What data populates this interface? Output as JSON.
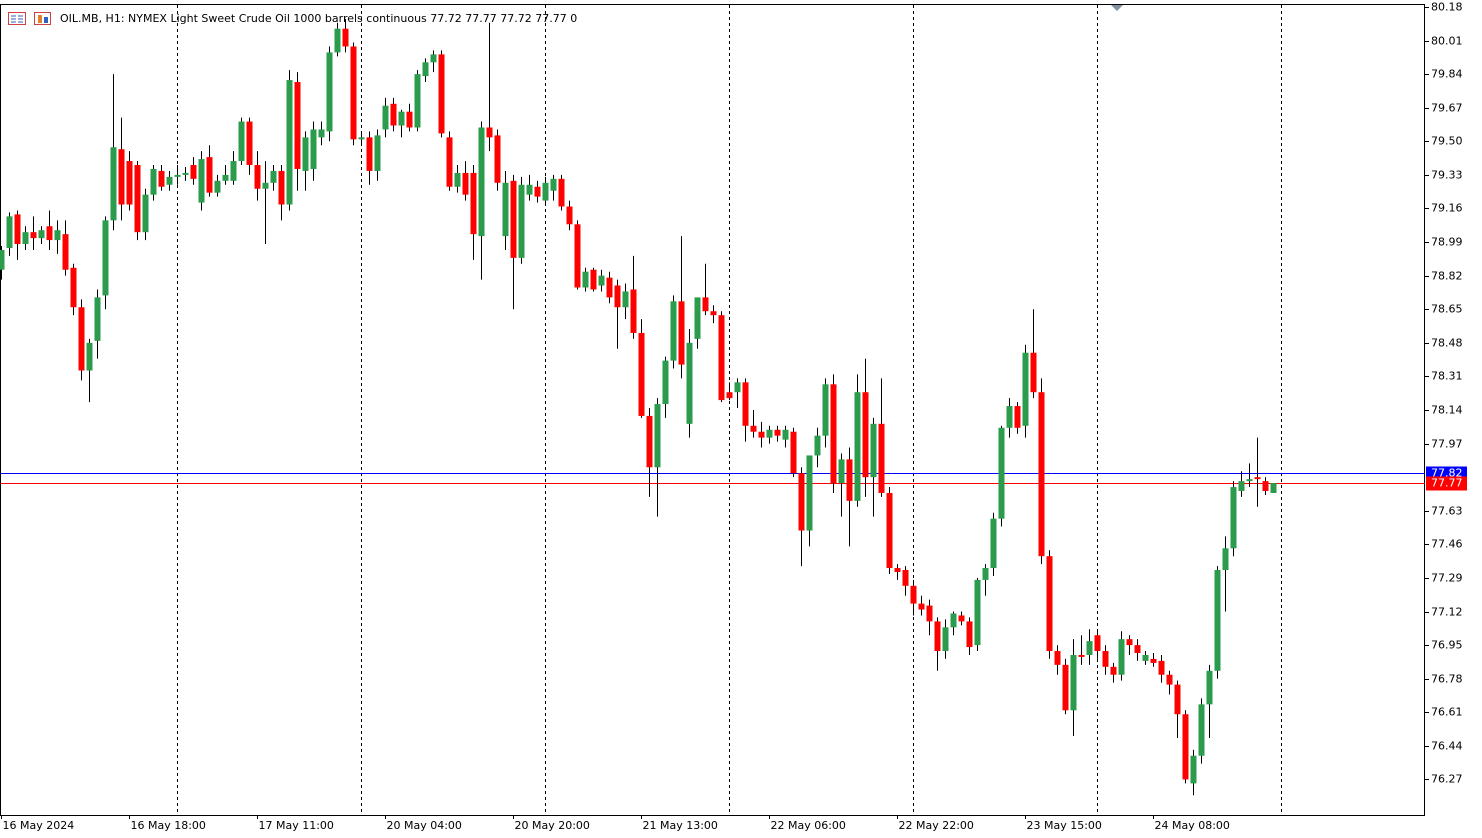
{
  "chart_data": {
    "type": "candlestick",
    "title": "OIL.MB, H1:  NYMEX Light Sweet Crude Oil 1000 barrels continuous  77.72 77.77 77.72 77.77  0",
    "up_color": "#2b9b4c",
    "down_color": "#ff0000",
    "wick_color": "#000000",
    "open": [
      78.85,
      78.96,
      79.13,
      78.98,
      79.04,
      79.01,
      79.07,
      79.0,
      79.03,
      78.86,
      78.66,
      78.34,
      78.49,
      78.72,
      79.1,
      79.46,
      79.4,
      79.38,
      79.04,
      79.23,
      79.35,
      79.28,
      79.32,
      79.33,
      79.38,
      79.19,
      79.42,
      79.24,
      79.3,
      79.3,
      79.4,
      79.6,
      79.38,
      79.26,
      79.29,
      79.35,
      79.18,
      79.8,
      79.35,
      79.36,
      79.52,
      79.55,
      79.95,
      80.07,
      79.98,
      79.51,
      79.52,
      79.35,
      79.56,
      79.69,
      79.58,
      79.65,
      79.57,
      79.83,
      79.9,
      79.94,
      79.52,
      79.27,
      79.34,
      79.34,
      79.02,
      79.57,
      79.53,
      79.02,
      79.3,
      78.91,
      79.23,
      79.27,
      79.2,
      79.25,
      79.31,
      79.17,
      79.08,
      78.76,
      78.85,
      78.77,
      78.81,
      78.77,
      78.66,
      78.75,
      78.53,
      78.11,
      77.85,
      78.17,
      78.39,
      78.69,
      78.07,
      78.5,
      78.71,
      78.64,
      78.62,
      78.23,
      78.23,
      78.28,
      78.06,
      78.03,
      78.0,
      78.04,
      77.99,
      78.03,
      77.82,
      77.53,
      77.91,
      78.01,
      78.27,
      77.77,
      77.89,
      77.68,
      78.23,
      77.8,
      78.07,
      77.72,
      77.34,
      77.33,
      77.25,
      77.16,
      77.15,
      77.07,
      76.92,
      77.04,
      77.1,
      77.07,
      76.95,
      77.28,
      77.34,
      77.59,
      78.05,
      78.16,
      78.06,
      78.43,
      78.23,
      77.4,
      76.92,
      76.85,
      76.62,
      76.9,
      76.9,
      77.0,
      76.92,
      76.84,
      76.8,
      76.98,
      76.95,
      76.87,
      76.88,
      76.87,
      76.8,
      76.75,
      76.6,
      76.25,
      76.39,
      76.65,
      76.82,
      77.33,
      77.44,
      77.73,
      77.78,
      77.8,
      77.78,
      77.72
    ],
    "high": [
      78.97,
      79.14,
      79.15,
      79.07,
      79.12,
      79.07,
      79.15,
      79.1,
      79.1,
      78.88,
      78.7,
      78.5,
      78.75,
      79.12,
      79.84,
      79.62,
      79.45,
      79.4,
      79.26,
      79.38,
      79.38,
      79.35,
      79.38,
      79.37,
      79.42,
      79.45,
      79.48,
      79.33,
      79.38,
      79.45,
      79.62,
      79.62,
      79.45,
      79.4,
      79.38,
      79.38,
      79.86,
      79.85,
      79.55,
      79.6,
      79.6,
      79.98,
      80.1,
      80.12,
      80.0,
      79.54,
      79.55,
      79.56,
      79.72,
      79.72,
      79.66,
      79.69,
      79.86,
      79.92,
      79.96,
      79.96,
      79.55,
      79.38,
      79.4,
      79.38,
      79.6,
      80.1,
      79.56,
      79.35,
      79.33,
      79.32,
      79.33,
      79.3,
      79.32,
      79.33,
      79.33,
      79.2,
      79.1,
      78.86,
      78.86,
      78.85,
      78.84,
      78.8,
      78.78,
      78.92,
      78.6,
      78.15,
      78.2,
      78.41,
      78.72,
      79.02,
      78.55,
      78.7,
      78.88,
      78.67,
      78.64,
      78.28,
      78.3,
      78.3,
      78.14,
      78.08,
      78.06,
      78.06,
      78.06,
      78.05,
      77.85,
      77.9,
      78.05,
      78.3,
      78.32,
      77.92,
      77.95,
      78.32,
      78.4,
      78.1,
      78.3,
      77.75,
      77.36,
      77.35,
      77.28,
      77.2,
      77.18,
      77.09,
      77.08,
      77.12,
      77.12,
      77.09,
      77.29,
      77.36,
      77.62,
      78.06,
      78.2,
      78.18,
      78.47,
      78.65,
      78.3,
      77.43,
      76.95,
      76.88,
      76.98,
      77.0,
      77.03,
      77.02,
      76.95,
      76.86,
      77.02,
      77.0,
      76.98,
      76.92,
      76.91,
      76.9,
      76.82,
      76.77,
      76.62,
      76.42,
      76.68,
      76.85,
      77.35,
      77.5,
      77.78,
      77.83,
      77.87,
      78.0,
      77.8,
      77.77
    ],
    "low": [
      78.8,
      78.92,
      78.9,
      78.95,
      78.95,
      78.98,
      78.95,
      78.93,
      78.82,
      78.62,
      78.29,
      78.18,
      78.4,
      78.65,
      79.05,
      79.1,
      79.15,
      79.0,
      79.0,
      79.2,
      79.25,
      79.25,
      79.28,
      79.3,
      79.28,
      79.15,
      79.22,
      79.22,
      79.28,
      79.28,
      79.38,
      79.33,
      79.2,
      78.98,
      79.25,
      79.1,
      79.15,
      79.25,
      79.25,
      79.3,
      79.48,
      79.5,
      79.93,
      79.95,
      79.48,
      79.49,
      79.28,
      79.3,
      79.52,
      79.55,
      79.52,
      79.55,
      79.55,
      79.8,
      79.85,
      79.52,
      79.25,
      79.24,
      79.2,
      78.9,
      78.8,
      79.45,
      79.25,
      78.95,
      78.65,
      78.88,
      79.2,
      79.19,
      79.18,
      79.2,
      79.15,
      79.05,
      78.75,
      78.74,
      78.74,
      78.74,
      78.68,
      78.45,
      78.6,
      78.5,
      78.1,
      77.7,
      77.6,
      78.1,
      78.35,
      78.3,
      78.0,
      78.45,
      78.62,
      78.58,
      78.18,
      78.19,
      78.15,
      77.98,
      78.0,
      77.95,
      77.97,
      77.98,
      77.95,
      77.8,
      77.35,
      77.45,
      77.85,
      77.95,
      77.72,
      77.6,
      77.45,
      77.65,
      77.7,
      77.6,
      77.7,
      77.31,
      77.28,
      77.2,
      77.1,
      77.1,
      77.0,
      76.82,
      76.88,
      77.0,
      77.05,
      76.9,
      76.92,
      77.2,
      77.3,
      77.55,
      78.0,
      78.02,
      78.0,
      78.2,
      77.36,
      76.88,
      76.8,
      76.6,
      76.49,
      76.85,
      76.85,
      76.88,
      76.8,
      76.76,
      76.77,
      76.9,
      76.87,
      76.85,
      76.84,
      76.76,
      76.7,
      76.48,
      76.25,
      76.19,
      76.35,
      76.48,
      76.78,
      77.12,
      77.4,
      77.7,
      77.75,
      77.65,
      77.71,
      77.72
    ],
    "close": [
      78.95,
      79.12,
      78.98,
      79.04,
      79.01,
      79.05,
      79.0,
      79.05,
      78.85,
      78.66,
      78.34,
      78.48,
      78.71,
      79.1,
      79.47,
      79.18,
      79.18,
      79.04,
      79.23,
      79.36,
      79.27,
      79.32,
      79.33,
      79.34,
      79.31,
      79.41,
      79.24,
      79.3,
      79.33,
      79.4,
      79.6,
      79.38,
      79.26,
      79.29,
      79.35,
      79.18,
      79.81,
      79.36,
      79.52,
      79.56,
      79.56,
      79.95,
      80.07,
      79.98,
      79.51,
      79.52,
      79.35,
      79.53,
      79.68,
      79.58,
      79.65,
      79.57,
      79.84,
      79.9,
      79.94,
      79.54,
      79.27,
      79.34,
      79.23,
      79.03,
      79.57,
      79.52,
      79.29,
      79.29,
      78.91,
      79.28,
      79.28,
      79.22,
      79.29,
      79.31,
      79.17,
      79.08,
      78.76,
      78.84,
      78.75,
      78.82,
      78.71,
      78.66,
      78.74,
      78.53,
      78.11,
      77.85,
      78.17,
      78.39,
      78.69,
      78.37,
      78.48,
      78.71,
      78.64,
      78.62,
      78.19,
      78.2,
      78.28,
      78.06,
      78.03,
      78.0,
      78.04,
      78.01,
      78.04,
      77.82,
      77.53,
      77.91,
      78.01,
      78.27,
      77.77,
      77.89,
      77.68,
      78.23,
      77.8,
      78.07,
      77.72,
      77.34,
      77.32,
      77.25,
      77.16,
      77.13,
      77.07,
      76.92,
      77.04,
      77.11,
      77.07,
      76.94,
      77.28,
      77.34,
      77.59,
      78.05,
      78.16,
      78.05,
      78.43,
      78.23,
      77.4,
      76.92,
      76.85,
      76.62,
      76.9,
      76.89,
      76.97,
      76.92,
      76.84,
      76.8,
      76.98,
      76.95,
      76.91,
      76.9,
      76.86,
      76.8,
      76.75,
      76.6,
      76.27,
      76.39,
      76.65,
      76.82,
      77.33,
      77.44,
      77.75,
      77.78,
      77.79,
      77.79,
      77.73,
      77.77
    ],
    "ylim": [
      76.09,
      80.195
    ],
    "yticks": [
      80.18,
      80.01,
      79.84,
      79.67,
      {
        "value": 79.5,
        "label": "79.50"
      },
      79.33,
      79.16,
      78.99,
      78.82,
      78.65,
      78.48,
      78.31,
      78.14,
      77.97,
      77.63,
      77.46,
      77.29,
      77.12,
      76.95,
      76.78,
      76.61,
      76.44,
      76.27
    ],
    "xticks": [
      {
        "value": 0,
        "label": "16 May 2024"
      },
      {
        "value": 16,
        "label": "16 May 18:00"
      },
      {
        "value": 32,
        "label": "17 May 11:00"
      },
      {
        "value": 48,
        "label": "20 May 04:00"
      },
      {
        "value": 64,
        "label": "20 May 20:00"
      },
      {
        "value": 80,
        "label": "21 May 13:00"
      },
      {
        "value": 96,
        "label": "22 May 06:00"
      },
      {
        "value": 112,
        "label": "22 May 22:00"
      },
      {
        "value": 128,
        "label": "23 May 15:00"
      },
      {
        "value": 144,
        "label": "24 May 08:00"
      }
    ],
    "period_separators": [
      22,
      45,
      68,
      91,
      114,
      137,
      160
    ],
    "price_lines": [
      {
        "value": 77.82,
        "color": "#0000ff"
      },
      {
        "value": 77.77,
        "color": "#ff0000"
      }
    ]
  }
}
